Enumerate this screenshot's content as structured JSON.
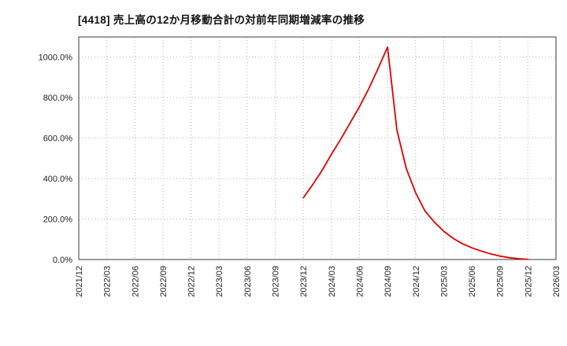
{
  "chart_data": {
    "type": "line",
    "title": "[4418]  売上高の12か月移動合計の対前年同期増減率の推移",
    "xlabel": "",
    "ylabel": "",
    "x_range": [
      "2021/12",
      "2026/03"
    ],
    "x_ticks": [
      "2021/12",
      "2022/03",
      "2022/06",
      "2022/09",
      "2022/12",
      "2023/03",
      "2023/06",
      "2023/09",
      "2023/12",
      "2024/03",
      "2024/06",
      "2024/09",
      "2024/12",
      "2025/03",
      "2025/06",
      "2025/09",
      "2025/12",
      "2026/03"
    ],
    "y_ticks": [
      0,
      200,
      400,
      600,
      800,
      1000
    ],
    "y_tick_labels": [
      "0.0%",
      "200.0%",
      "400.0%",
      "600.0%",
      "800.0%",
      "1000.0%"
    ],
    "ylim": [
      0,
      1100
    ],
    "grid": true,
    "legend_position": "none",
    "series": [
      {
        "name": "売上高の12か月移動合計の対前年同期増減率",
        "color": "#dd0000",
        "x": [
          "2023/12",
          "2024/01",
          "2024/02",
          "2024/03",
          "2024/04",
          "2024/05",
          "2024/06",
          "2024/07",
          "2024/08",
          "2024/09",
          "2024/10",
          "2024/11",
          "2024/12",
          "2025/01",
          "2025/02",
          "2025/03",
          "2025/04",
          "2025/05",
          "2025/06",
          "2025/07",
          "2025/08",
          "2025/09",
          "2025/10",
          "2025/11",
          "2025/12"
        ],
        "values": [
          305,
          370,
          440,
          520,
          595,
          675,
          755,
          845,
          945,
          1050,
          640,
          450,
          330,
          240,
          185,
          140,
          105,
          78,
          58,
          42,
          28,
          17,
          9,
          4,
          1
        ]
      }
    ],
    "colors": {
      "line": "#dd0000",
      "grid": "#b0b0b0",
      "border": "#3a3a3a",
      "tick_text": "#222222",
      "title_text": "#111111"
    }
  }
}
